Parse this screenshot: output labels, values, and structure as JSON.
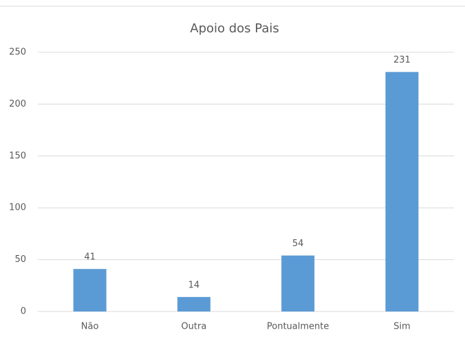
{
  "chart_data": {
    "type": "bar",
    "title": "Apoio dos Pais",
    "categories": [
      "Não",
      "Outra",
      "Pontualmente",
      "Sim"
    ],
    "values": [
      41,
      14,
      54,
      231
    ],
    "color": "#5b9bd5",
    "ylim": [
      0,
      250
    ],
    "yticks": [
      0,
      50,
      100,
      150,
      200,
      250
    ],
    "grid": true,
    "data_labels": true
  }
}
